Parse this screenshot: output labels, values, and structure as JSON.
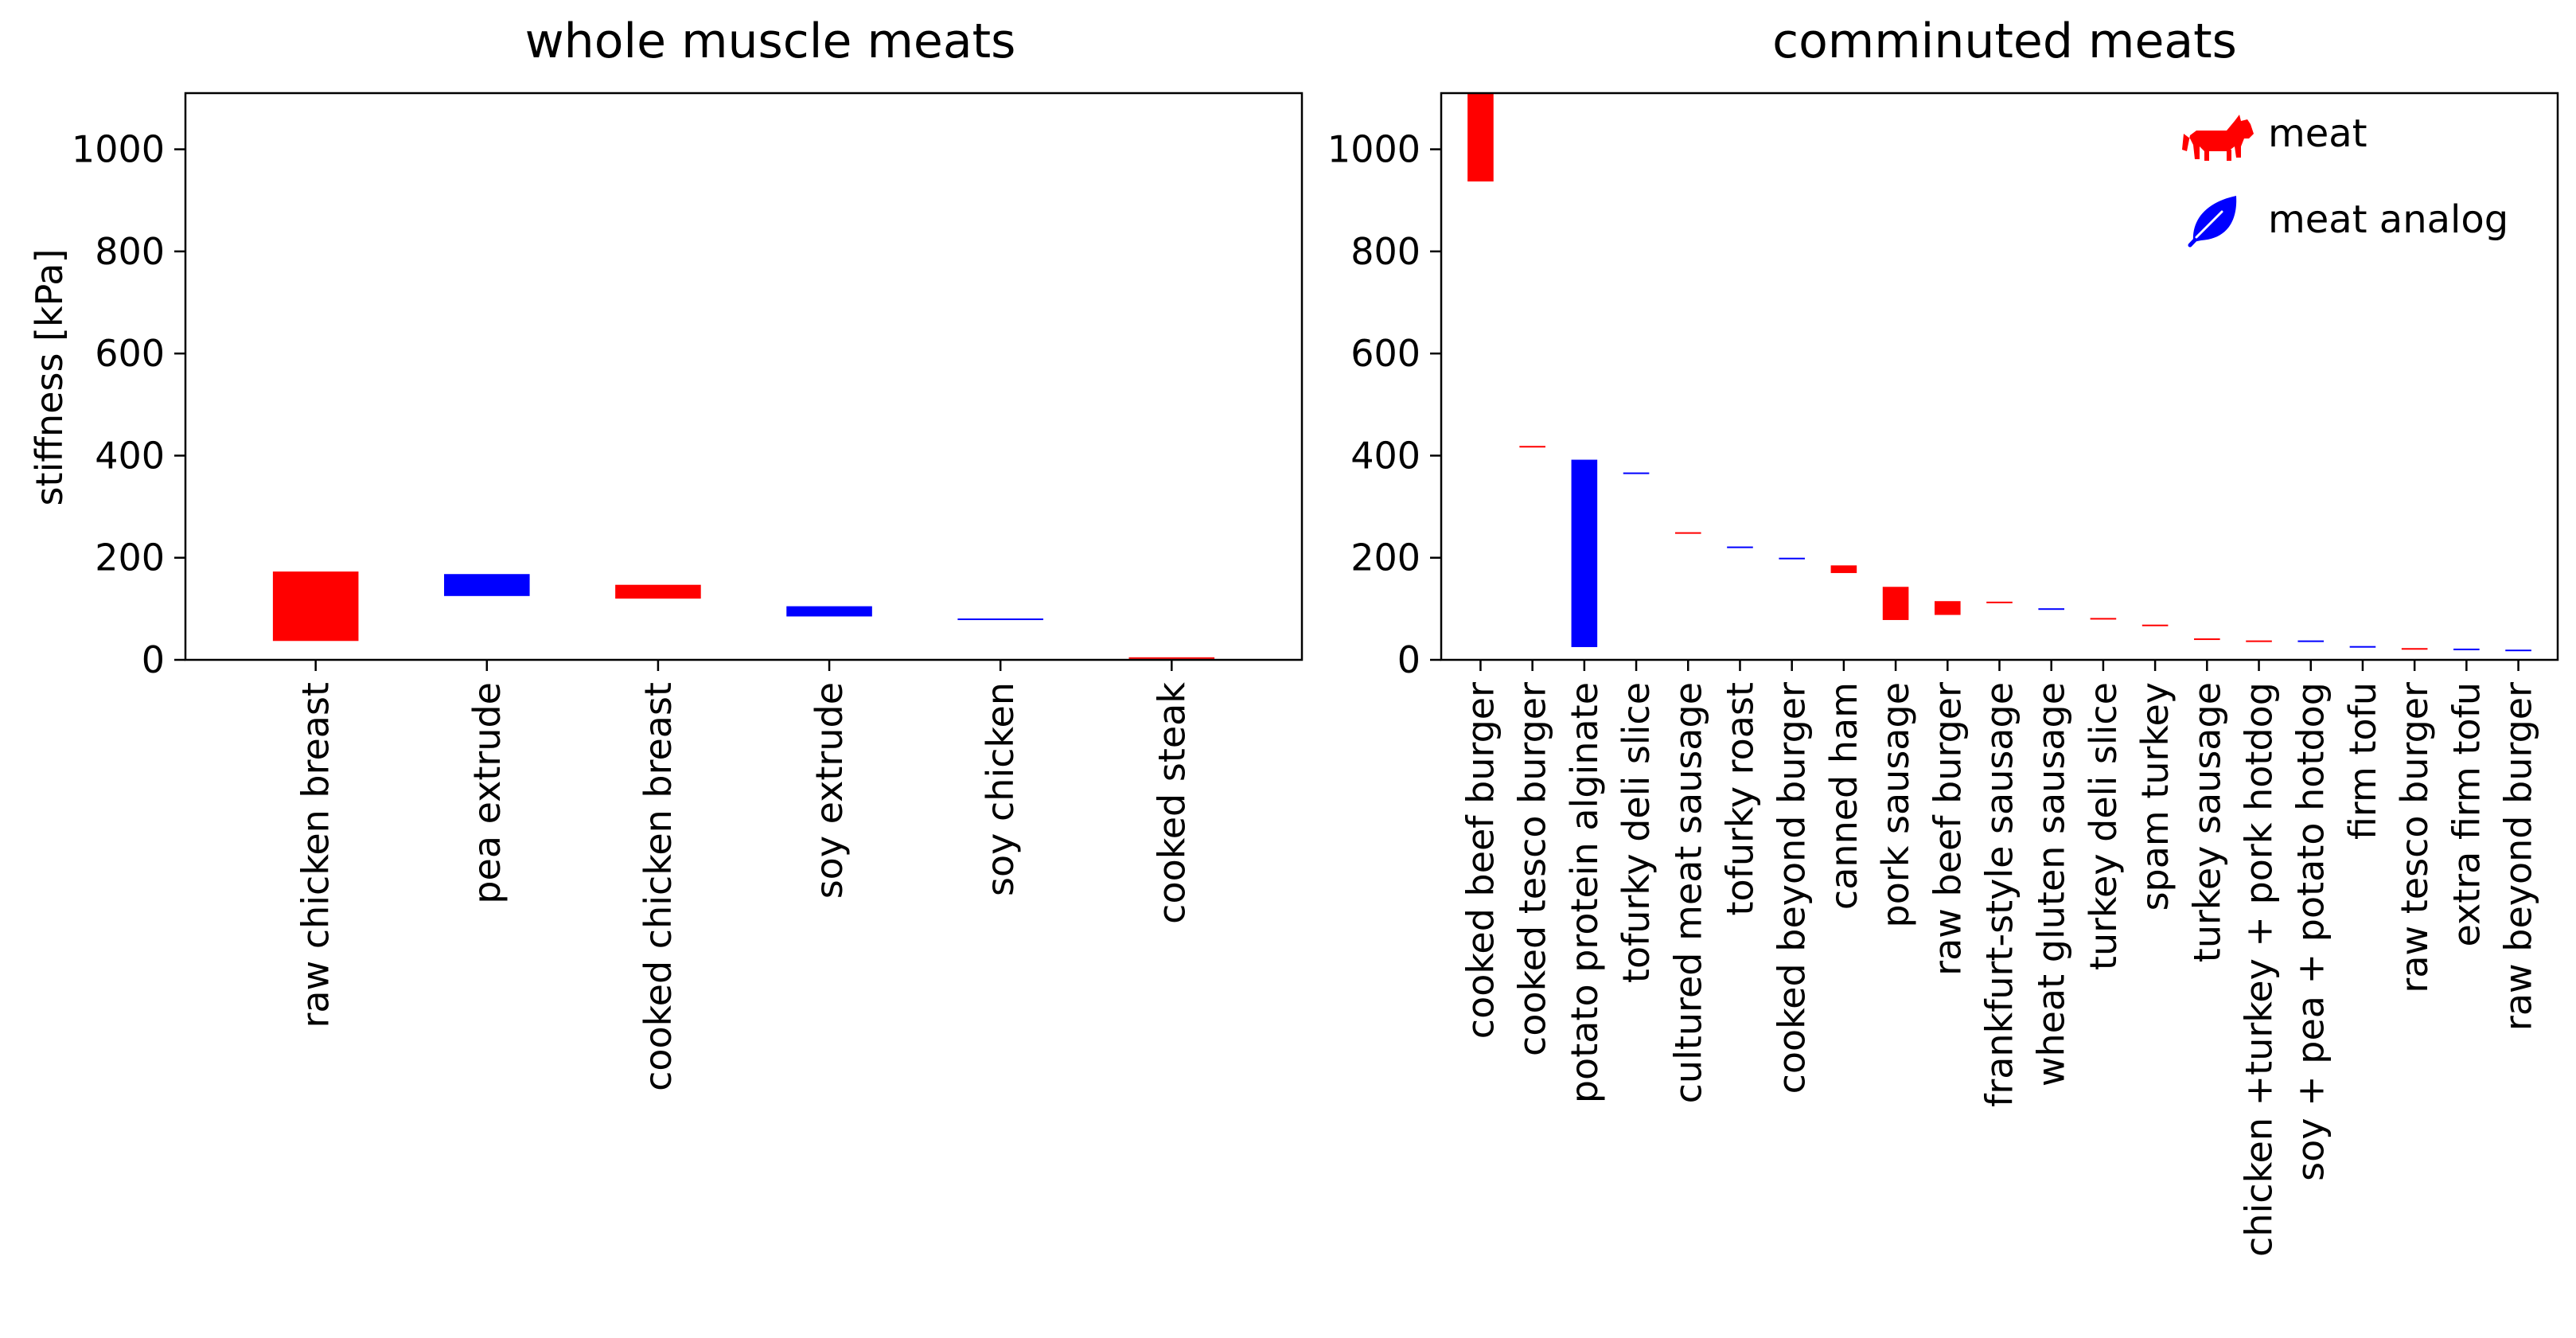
{
  "chart_data": [
    {
      "type": "bar",
      "title": "whole muscle meats",
      "xlabel": "",
      "ylabel": "stiffness [kPa]",
      "ylim": [
        0,
        1110
      ],
      "yticks": [
        0,
        200,
        400,
        600,
        800,
        1000
      ],
      "grid": false,
      "bar_style": "floating range (low to high)",
      "categories": [
        "raw chicken breast",
        "pea extrude",
        "cooked chicken breast",
        "soy extrude",
        "soy chicken",
        "cooked steak"
      ],
      "ranges": [
        [
          37,
          173
        ],
        [
          125,
          168
        ],
        [
          120,
          147
        ],
        [
          85,
          105
        ],
        [
          80,
          81
        ],
        [
          4,
          5
        ]
      ],
      "groups": [
        "meat",
        "meat analog",
        "meat",
        "meat analog",
        "meat analog",
        "meat"
      ]
    },
    {
      "type": "bar",
      "title": "comminuted meats",
      "xlabel": "",
      "ylabel": "",
      "ylim": [
        0,
        1110
      ],
      "yticks": [
        0,
        200,
        400,
        600,
        800,
        1000
      ],
      "grid": false,
      "bar_style": "floating range (low to high)",
      "legend_position": "top-right",
      "categories": [
        "cooked beef burger",
        "cooked tesco burger",
        "potato protein alginate",
        "tofurky deli slice",
        "cultured meat sausage",
        "tofurky roast",
        "cooked beyond burger",
        "canned ham",
        "pork sausage",
        "raw beef burger",
        "frankfurt-style sausage",
        "wheat gluten sausage",
        "turkey deli slice",
        "spam turkey",
        "turkey sausage",
        "chicken +turkey + pork hotdog",
        "soy + pea + potato hotdog",
        "firm tofu",
        "raw tesco burger",
        "extra firm tofu",
        "raw beyond burger"
      ],
      "ranges": [
        [
          937,
          1110
        ],
        [
          417,
          419
        ],
        [
          25,
          392
        ],
        [
          365,
          367
        ],
        [
          247,
          250
        ],
        [
          220,
          222
        ],
        [
          198,
          200
        ],
        [
          170,
          185
        ],
        [
          78,
          143
        ],
        [
          88,
          115
        ],
        [
          113,
          114
        ],
        [
          100,
          101
        ],
        [
          81,
          82
        ],
        [
          67,
          69
        ],
        [
          41,
          42
        ],
        [
          37,
          38
        ],
        [
          36,
          38
        ],
        [
          26,
          27
        ],
        [
          22,
          23
        ],
        [
          21,
          22
        ],
        [
          19,
          20
        ]
      ],
      "groups": [
        "meat",
        "meat",
        "meat analog",
        "meat analog",
        "meat",
        "meat analog",
        "meat analog",
        "meat",
        "meat",
        "meat",
        "meat",
        "meat analog",
        "meat",
        "meat",
        "meat",
        "meat",
        "meat analog",
        "meat analog",
        "meat",
        "meat analog",
        "meat analog"
      ]
    }
  ],
  "legend": [
    {
      "label": "meat",
      "group": "meat",
      "icon": "cow-icon",
      "color": "#ff0000"
    },
    {
      "label": "meat analog",
      "group": "meat analog",
      "icon": "leaf-icon",
      "color": "#0000ff"
    }
  ],
  "colors": {
    "meat": "#ff0000",
    "meat analog": "#0000ff"
  }
}
